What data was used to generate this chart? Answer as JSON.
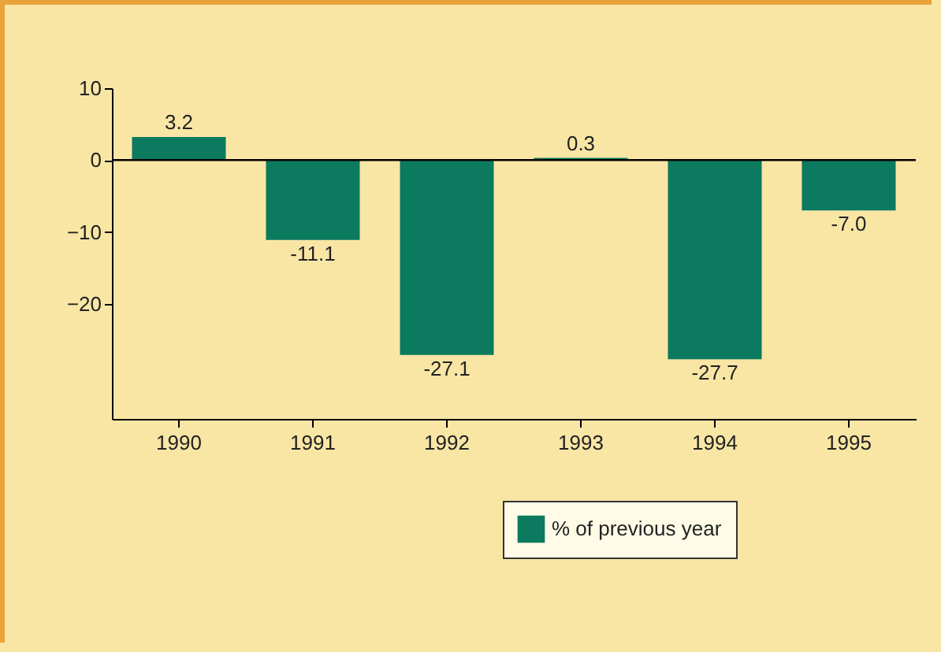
{
  "chart_data": {
    "type": "bar",
    "categories": [
      "1990",
      "1991",
      "1992",
      "1993",
      "1994",
      "1995"
    ],
    "series": [
      {
        "name": "% of previous year",
        "color": "#0b7a5f",
        "values": [
          3.2,
          -11.1,
          -27.1,
          0.3,
          -27.7,
          -7.0
        ],
        "value_labels": [
          "3.2",
          "-11.1",
          "-27.1",
          "0.3",
          "-27.7",
          "-7.0"
        ]
      }
    ],
    "ylim": [
      -36,
      10
    ],
    "yticks": [
      10,
      0,
      -10,
      -20
    ],
    "ref_lines": [
      {
        "axis": "y",
        "value": 0,
        "color": "#000000"
      }
    ],
    "grid": false,
    "legend": "bottom right"
  }
}
